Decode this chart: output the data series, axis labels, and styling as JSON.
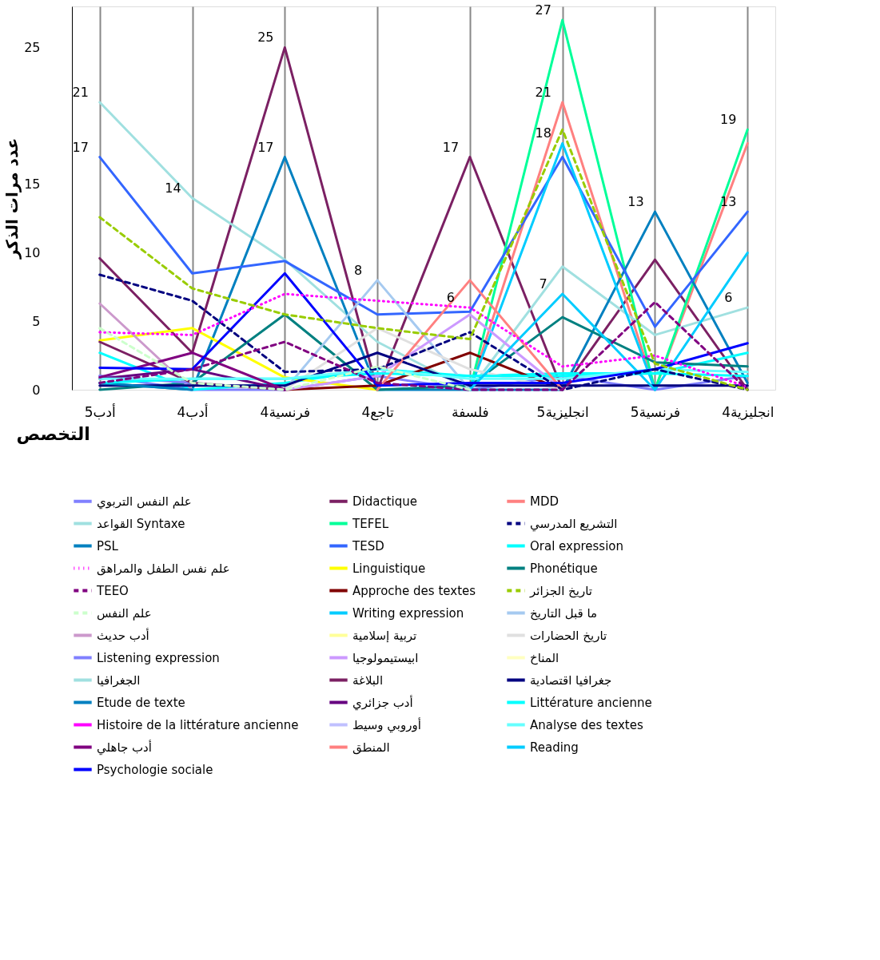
{
  "chart_data": {
    "type": "line",
    "xlabel": "التخصص",
    "ylabel": "عدد مرات الذكر",
    "categories": [
      "أدب5",
      "أدب4",
      "فرنسية4",
      "تاجع4",
      "فلسفة",
      "انجليزية5",
      "فرنسية5",
      "انجليزية4"
    ],
    "ylim": [
      0,
      28
    ],
    "yticks": [
      0,
      5,
      10,
      15,
      25
    ],
    "grid": "x",
    "legend": "bottom",
    "marker": "none",
    "series": [
      {
        "name": "علم النفس التربوي",
        "color": "#8080ff",
        "line_style": "solid",
        "values": [
          1,
          0,
          0,
          1,
          0,
          1,
          0,
          1
        ],
        "value_labels": [
          null,
          null,
          null,
          null,
          null,
          null,
          null,
          null
        ]
      },
      {
        "name": "Didactique",
        "color": "#7b2063",
        "line_style": "solid",
        "values": [
          9.6,
          2.7,
          25,
          0,
          17,
          0,
          9.5,
          0
        ],
        "value_labels": [
          null,
          null,
          "25",
          null,
          "17",
          null,
          null,
          null
        ]
      },
      {
        "name": "MDD",
        "color": "#ff8080",
        "line_style": "solid",
        "values": [
          null,
          null,
          null,
          null,
          0,
          21,
          0,
          18
        ],
        "value_labels": [
          null,
          null,
          null,
          null,
          null,
          "21",
          null,
          null
        ]
      },
      {
        "name": "القواعد Syntaxe",
        "color": "#a0e0e0",
        "line_style": "solid",
        "values": [
          21,
          14,
          9.5,
          3.5,
          0,
          9,
          4,
          6
        ],
        "value_labels": [
          "21",
          "14",
          null,
          null,
          null,
          null,
          null,
          "6"
        ]
      },
      {
        "name": "TEFEL",
        "color": "#00ff99",
        "line_style": "solid",
        "values": [
          null,
          null,
          null,
          null,
          0,
          27,
          0,
          19
        ],
        "value_labels": [
          null,
          null,
          null,
          null,
          null,
          "27",
          null,
          "19"
        ]
      },
      {
        "name": "التشريع المدرسي",
        "color": "#000080",
        "line_style": "dashed",
        "values": [
          8.4,
          6.5,
          1.3,
          1.5,
          4.2,
          0,
          1.5,
          0
        ],
        "value_labels": [
          null,
          null,
          null,
          null,
          null,
          null,
          null,
          null
        ]
      },
      {
        "name": "PSL",
        "color": "#0080c0",
        "line_style": "solid",
        "values": [
          0.5,
          0,
          17,
          0,
          0,
          0,
          13,
          0.5
        ],
        "value_labels": [
          null,
          null,
          "17",
          null,
          null,
          null,
          "13",
          null
        ]
      },
      {
        "name": "TESD",
        "color": "#3366ff",
        "line_style": "solid",
        "values": [
          17,
          8.5,
          9.4,
          5.5,
          5.7,
          17,
          4.6,
          13
        ],
        "value_labels": [
          "17",
          null,
          null,
          null,
          null,
          null,
          null,
          "13"
        ]
      },
      {
        "name": "Oral expression",
        "color": "#00ffff",
        "line_style": "solid",
        "values": [
          2.7,
          0,
          0.5,
          1.5,
          1,
          1.2,
          1.2,
          2.7
        ],
        "value_labels": [
          null,
          null,
          null,
          null,
          null,
          null,
          null,
          null
        ]
      },
      {
        "name": "علم نفس الطفل والمراهق",
        "color": "#ff00ff",
        "line_style": "dotted",
        "values": [
          4.2,
          4,
          7,
          6.5,
          6,
          1.7,
          2.5,
          0.2
        ],
        "value_labels": [
          null,
          null,
          null,
          null,
          "6",
          null,
          null,
          null
        ]
      },
      {
        "name": "Linguistique",
        "color": "#ffff00",
        "line_style": "solid",
        "values": [
          3.6,
          4.5,
          0.9,
          0,
          null,
          null,
          null,
          null
        ],
        "value_labels": [
          null,
          null,
          null,
          null,
          null,
          null,
          null,
          null
        ]
      },
      {
        "name": "Phonétique",
        "color": "#008080",
        "line_style": "solid",
        "values": [
          0,
          0.5,
          5.5,
          0,
          0.3,
          5.3,
          2,
          1.7
        ],
        "value_labels": [
          null,
          null,
          null,
          null,
          null,
          null,
          null,
          null
        ]
      },
      {
        "name": "TEEO",
        "color": "#800080",
        "line_style": "dashed",
        "values": [
          0.5,
          1.5,
          3.5,
          0.5,
          0,
          0,
          6.4,
          0
        ],
        "value_labels": [
          null,
          null,
          null,
          null,
          null,
          null,
          null,
          null
        ]
      },
      {
        "name": "Approche des textes",
        "color": "#800000",
        "line_style": "solid",
        "values": [
          null,
          null,
          0,
          0.3,
          2.7,
          0,
          null,
          null
        ],
        "value_labels": [
          null,
          null,
          null,
          null,
          null,
          null,
          null,
          null
        ]
      },
      {
        "name": "تاريخ الجزائر",
        "color": "#99cc00",
        "line_style": "dashed",
        "values": [
          12.6,
          7.4,
          5.5,
          4.5,
          3.7,
          19,
          1.9,
          0
        ],
        "value_labels": [
          null,
          null,
          null,
          null,
          null,
          null,
          null,
          null
        ]
      },
      {
        "name": "علم النفس",
        "color": "#ccffcc",
        "line_style": "dashed",
        "values": [
          4.5,
          0.5,
          0,
          1.7,
          0,
          null,
          null,
          null
        ],
        "value_labels": [
          null,
          null,
          null,
          null,
          null,
          null,
          null,
          null
        ]
      },
      {
        "name": "Writing expression",
        "color": "#00ccff",
        "line_style": "solid",
        "values": [
          null,
          null,
          null,
          null,
          0,
          18,
          0,
          10
        ],
        "value_labels": [
          null,
          null,
          null,
          null,
          null,
          "18",
          null,
          null
        ]
      },
      {
        "name": "ما قبل التاريخ",
        "color": "#a6caf0",
        "line_style": "solid",
        "values": [
          null,
          null,
          0,
          8,
          0,
          null,
          null,
          null
        ],
        "value_labels": [
          null,
          null,
          null,
          "8",
          null,
          null,
          null,
          null
        ]
      },
      {
        "name": "أدب حديث",
        "color": "#cc99cc",
        "line_style": "solid",
        "values": [
          6.3,
          0,
          null,
          null,
          null,
          null,
          null,
          null
        ],
        "value_labels": [
          null,
          null,
          null,
          null,
          null,
          null,
          null,
          null
        ]
      },
      {
        "name": "تربية إسلامية",
        "color": "#ffff99",
        "line_style": "solid",
        "values": [
          null,
          null,
          null,
          null,
          null,
          null,
          null,
          null
        ],
        "value_labels": [
          null,
          null,
          null,
          null,
          null,
          null,
          null,
          null
        ]
      },
      {
        "name": "تاريخ الحضارات",
        "color": "#e0e0e0",
        "line_style": "solid",
        "values": [
          null,
          null,
          0,
          4.5,
          1.5,
          0,
          null,
          null
        ],
        "value_labels": [
          null,
          null,
          null,
          null,
          null,
          null,
          null,
          null
        ]
      },
      {
        "name": "Listening expression",
        "color": "#8080ff",
        "line_style": "solid",
        "values": [
          1,
          0.5,
          0,
          null,
          null,
          null,
          null,
          null
        ],
        "value_labels": [
          null,
          null,
          null,
          null,
          null,
          null,
          null,
          null
        ]
      },
      {
        "name": "ابيستيمولوجيا",
        "color": "#cc99ff",
        "line_style": "solid",
        "values": [
          null,
          null,
          0,
          1,
          5.5,
          0,
          null,
          null
        ],
        "value_labels": [
          null,
          null,
          null,
          null,
          null,
          null,
          null,
          null
        ]
      },
      {
        "name": "المناخ",
        "color": "#ffffc0",
        "line_style": "solid",
        "values": [
          null,
          null,
          null,
          null,
          null,
          null,
          null,
          null
        ],
        "value_labels": [
          null,
          null,
          null,
          null,
          null,
          null,
          null,
          null
        ]
      },
      {
        "name": "الجغرافيا",
        "color": "#a0e0e0",
        "line_style": "solid",
        "values": [
          null,
          null,
          null,
          null,
          null,
          null,
          null,
          null
        ],
        "value_labels": [
          null,
          null,
          null,
          null,
          null,
          null,
          null,
          null
        ]
      },
      {
        "name": "البلاغة",
        "color": "#7b2063",
        "line_style": "solid",
        "values": [
          3.5,
          0.5,
          0,
          null,
          null,
          null,
          null,
          null
        ],
        "value_labels": [
          null,
          null,
          null,
          null,
          null,
          null,
          null,
          null
        ]
      },
      {
        "name": "جغرافيا اقتصادية",
        "color": "#000080",
        "line_style": "solid",
        "values": [
          0.3,
          0.3,
          0.3,
          2.7,
          0.3,
          0.3,
          0.3,
          0.3
        ],
        "value_labels": [
          null,
          null,
          null,
          null,
          null,
          null,
          null,
          null
        ]
      },
      {
        "name": "Etude de texte",
        "color": "#0080c0",
        "line_style": "solid",
        "values": [
          0.5,
          0,
          null,
          null,
          null,
          null,
          null,
          null
        ],
        "value_labels": [
          null,
          null,
          null,
          null,
          null,
          null,
          null,
          null
        ]
      },
      {
        "name": "أدب جزائري",
        "color": "#660080",
        "line_style": "solid",
        "values": [
          0.8,
          1.5,
          0,
          null,
          null,
          null,
          null,
          null
        ],
        "value_labels": [
          null,
          null,
          null,
          null,
          null,
          null,
          null,
          null
        ]
      },
      {
        "name": "Littérature ancienne",
        "color": "#00ffff",
        "line_style": "solid",
        "values": [
          0.5,
          0.8,
          0.8,
          1.2,
          1,
          1,
          1.2,
          1
        ],
        "value_labels": [
          null,
          null,
          null,
          null,
          null,
          null,
          null,
          null
        ]
      },
      {
        "name": "Histoire de la littérature ancienne",
        "color": "#ff00ff",
        "line_style": "solid",
        "values": [
          null,
          null,
          null,
          null,
          null,
          null,
          null,
          null
        ],
        "value_labels": [
          null,
          null,
          null,
          null,
          null,
          null,
          null,
          null
        ]
      },
      {
        "name": "أوروبي وسيط",
        "color": "#c0c0ff",
        "line_style": "solid",
        "values": [
          null,
          null,
          null,
          null,
          null,
          null,
          null,
          null
        ],
        "value_labels": [
          null,
          null,
          null,
          null,
          null,
          null,
          null,
          null
        ]
      },
      {
        "name": "Analyse des textes",
        "color": "#66ffff",
        "line_style": "solid",
        "values": [
          0.8,
          0.8,
          0.8,
          1.5,
          0.8,
          0.8,
          1.5,
          1.3
        ],
        "value_labels": [
          null,
          null,
          null,
          null,
          null,
          null,
          null,
          null
        ]
      },
      {
        "name": "أدب جاهلي",
        "color": "#800080",
        "line_style": "solid",
        "values": [
          0.9,
          2.7,
          0,
          null,
          null,
          null,
          null,
          null
        ],
        "value_labels": [
          null,
          null,
          null,
          null,
          null,
          null,
          null,
          null
        ]
      },
      {
        "name": "المنطق",
        "color": "#ff8080",
        "line_style": "solid",
        "values": [
          null,
          null,
          null,
          0,
          8,
          0,
          null,
          null
        ],
        "value_labels": [
          null,
          null,
          null,
          null,
          null,
          null,
          null,
          null
        ]
      },
      {
        "name": "Reading",
        "color": "#00ccff",
        "line_style": "solid",
        "values": [
          null,
          null,
          null,
          null,
          0,
          7,
          0,
          null
        ],
        "value_labels": [
          null,
          null,
          null,
          null,
          null,
          "7",
          null,
          null
        ]
      },
      {
        "name": "Psychologie sociale",
        "color": "#0000ff",
        "line_style": "solid",
        "values": [
          1.6,
          1.5,
          8.5,
          0.3,
          0.5,
          0.5,
          1.5,
          3.4
        ],
        "value_labels": [
          null,
          null,
          null,
          null,
          null,
          null,
          null,
          null
        ]
      }
    ]
  }
}
